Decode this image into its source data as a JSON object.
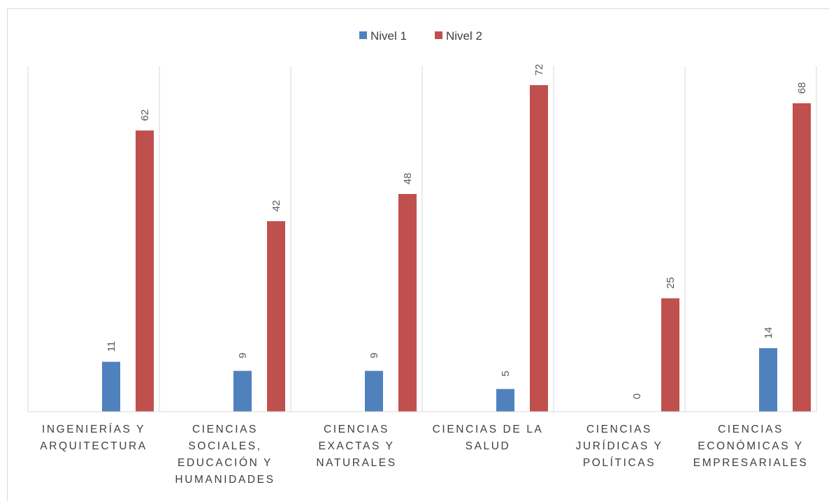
{
  "chart_data": {
    "type": "bar",
    "title": "",
    "xlabel": "",
    "ylabel": "",
    "ylim": [
      0,
      80
    ],
    "grid": "vertical category separators",
    "legend_position": "top",
    "categories": [
      [
        "INGENIERÍAS Y",
        "ARQUITECTURA"
      ],
      [
        "CIENCIAS",
        "SOCIALES,",
        "EDUCACIÓN Y",
        "HUMANIDADES"
      ],
      [
        "CIENCIAS",
        "EXACTAS Y",
        "NATURALES"
      ],
      [
        "CIENCIAS DE LA",
        "SALUD"
      ],
      [
        "CIENCIAS",
        "JURÍDICAS Y",
        "POLÍTICAS"
      ],
      [
        "CIENCIAS",
        "ECONÓMICAS Y",
        "EMPRESARIALES"
      ]
    ],
    "series": [
      {
        "name": "Nivel 1",
        "color": "#4f81bd",
        "values": [
          11,
          9,
          9,
          5,
          0,
          14
        ]
      },
      {
        "name": "Nivel 2",
        "color": "#c0504d",
        "values": [
          62,
          42,
          48,
          72,
          25,
          68
        ]
      }
    ]
  }
}
